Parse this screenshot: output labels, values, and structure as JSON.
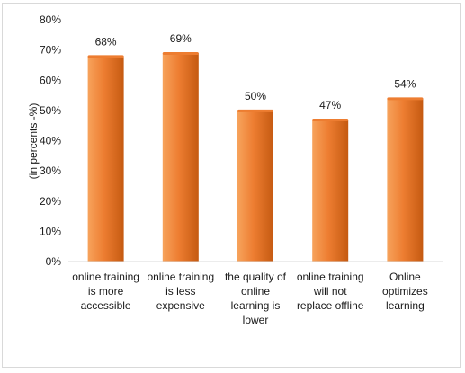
{
  "chart_data": {
    "type": "bar",
    "categories": [
      [
        "online training",
        "is more",
        "accessible"
      ],
      [
        "online training",
        "is less",
        "expensive"
      ],
      [
        "the quality of",
        "online",
        "learning is",
        "lower"
      ],
      [
        "online training",
        "will not",
        "replace offline"
      ],
      [
        "Online",
        "optimizes",
        "learning"
      ]
    ],
    "values": [
      68,
      69,
      50,
      47,
      54
    ],
    "data_labels": [
      "68%",
      "69%",
      "50%",
      "47%",
      "54%"
    ],
    "ylabel": "(in percents -%)",
    "ylim": [
      0,
      80
    ],
    "yticks": [
      0,
      10,
      20,
      30,
      40,
      50,
      60,
      70,
      80
    ],
    "ytick_labels": [
      "0%",
      "10%",
      "20%",
      "30%",
      "40%",
      "50%",
      "60%",
      "70%",
      "80%"
    ],
    "grid": false,
    "colors": {
      "bar_light": "#f7a35c",
      "bar_mid": "#ed7d31",
      "bar_dark": "#c55a11",
      "axis": "#d9d9d9"
    }
  }
}
